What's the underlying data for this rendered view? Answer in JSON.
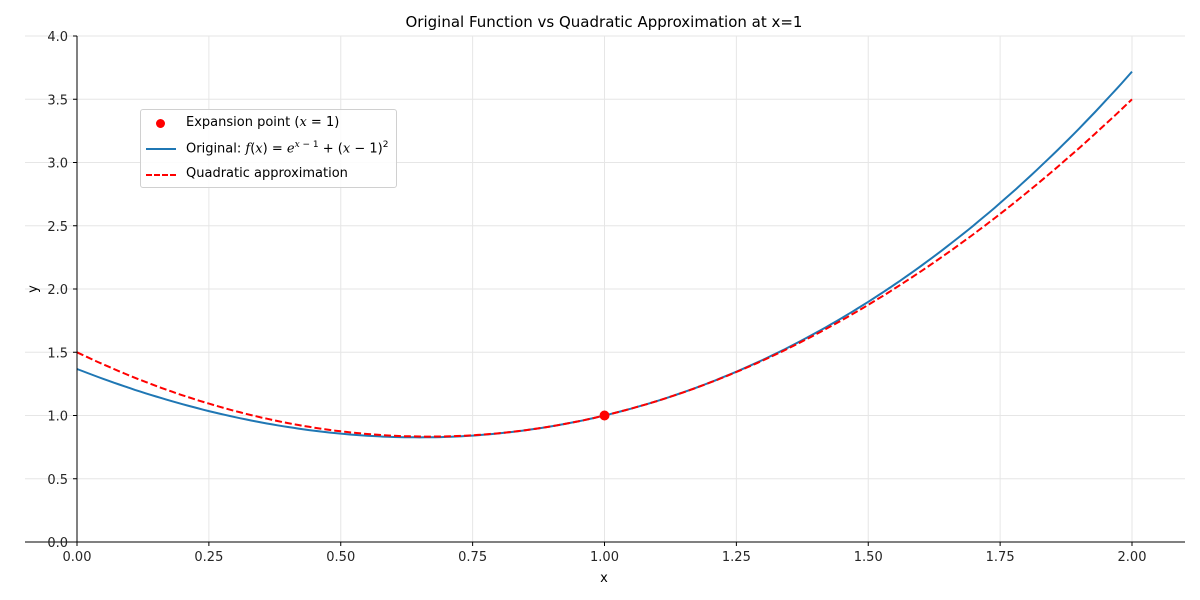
{
  "chart_data": {
    "type": "line",
    "title": "Original Function vs Quadratic Approximation at x=1",
    "xlabel": "x",
    "ylabel": "y",
    "xlim": [
      0,
      2.1
    ],
    "ylim": [
      0,
      4.0
    ],
    "grid": true,
    "legend_position": "upper left",
    "x_ticks": [
      "0.00",
      "0.25",
      "0.50",
      "0.75",
      "1.00",
      "1.25",
      "1.50",
      "1.75",
      "2.00"
    ],
    "y_ticks": [
      "0.0",
      "0.5",
      "1.0",
      "1.5",
      "2.0",
      "2.5",
      "3.0",
      "3.5",
      "4.0"
    ],
    "x": [
      0.0,
      0.25,
      0.5,
      0.75,
      1.0,
      1.25,
      1.5,
      1.75,
      2.0
    ],
    "series": [
      {
        "name": "Original: f(x) = e^(x-1) + (x-1)^2",
        "color": "#1f77b4",
        "style": "solid",
        "values": [
          1.368,
          1.035,
          0.857,
          0.841,
          1.0,
          1.347,
          1.899,
          2.68,
          3.718
        ]
      },
      {
        "name": "Quadratic approximation",
        "color": "#ff0000",
        "style": "dashed",
        "values": [
          1.5,
          1.094,
          0.875,
          0.844,
          1.0,
          1.344,
          1.875,
          2.594,
          3.5
        ]
      },
      {
        "name": "Expansion point (x = 1)",
        "color": "#ff0000",
        "style": "marker",
        "points": [
          [
            1.0,
            1.0
          ]
        ]
      }
    ]
  },
  "legend": {
    "expansion": "Expansion point (x = 1)",
    "original": "Original: f(x) = e^(x − 1) + (x − 1)^2",
    "quadratic": "Quadratic approximation"
  }
}
